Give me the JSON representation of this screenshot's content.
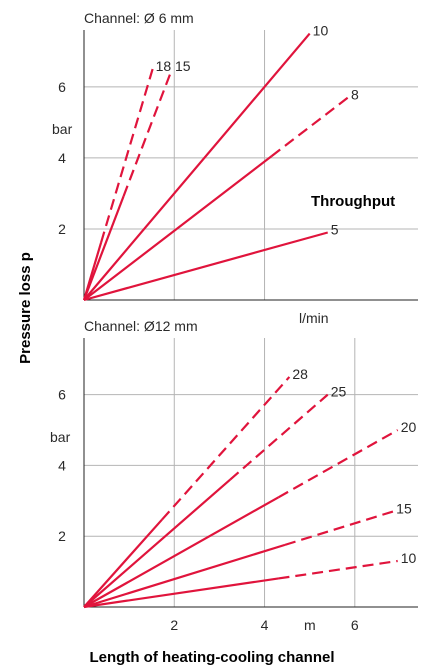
{
  "y_axis_title": "Pressure loss  p",
  "x_axis_title": "Length of heating-cooling channel",
  "colors": {
    "series": "#e0143c",
    "grid": "#b4b4b4",
    "axis": "#222222",
    "text": "#2a2a2a"
  },
  "chart_data": [
    {
      "type": "line",
      "title": "Channel:  Ø 6 mm",
      "xlabel": "l/min",
      "ylabel": "bar",
      "legend_title": "Throughput",
      "xlim": [
        0,
        7.4
      ],
      "ylim": [
        0,
        7.6
      ],
      "x_gridlines": [
        2,
        4
      ],
      "y_ticks": [
        2,
        4,
        6
      ],
      "y_tick_labels": [
        "2",
        "4",
        "6"
      ],
      "grid": true,
      "series": [
        {
          "name": "18",
          "points": [
            [
              0,
              0
            ],
            [
              1.52,
              6.5
            ]
          ],
          "dashed_from": 0.25
        },
        {
          "name": "15",
          "points": [
            [
              0,
              0
            ],
            [
              1.95,
              6.5
            ]
          ],
          "dashed_from": 0.45
        },
        {
          "name": "10",
          "points": [
            [
              0,
              0
            ],
            [
              5.0,
              7.5
            ]
          ],
          "dashed_from": null
        },
        {
          "name": "8",
          "points": [
            [
              0,
              0
            ],
            [
              5.85,
              5.7
            ]
          ],
          "dashed_from": 0.71
        },
        {
          "name": "5",
          "points": [
            [
              0,
              0
            ],
            [
              5.4,
              1.9
            ]
          ],
          "dashed_from": null
        }
      ]
    },
    {
      "type": "line",
      "title": "Channel: Ø12 mm",
      "xlabel": "m",
      "ylabel": "bar",
      "xlim": [
        0,
        7.4
      ],
      "ylim": [
        0,
        7.6
      ],
      "x_ticks": [
        2,
        4,
        6
      ],
      "x_tick_labels": [
        "2",
        "4",
        "6"
      ],
      "y_ticks": [
        2,
        4,
        6
      ],
      "y_tick_labels": [
        "2",
        "4",
        "6"
      ],
      "grid": true,
      "series": [
        {
          "name": "28",
          "points": [
            [
              0,
              0
            ],
            [
              4.55,
              6.5
            ]
          ],
          "dashed_from": 0.38
        },
        {
          "name": "25",
          "points": [
            [
              0,
              0
            ],
            [
              5.4,
              6.0
            ]
          ],
          "dashed_from": 0.6
        },
        {
          "name": "20",
          "points": [
            [
              0,
              0
            ],
            [
              6.95,
              5.0
            ]
          ],
          "dashed_from": 0.62
        },
        {
          "name": "15",
          "points": [
            [
              0,
              0
            ],
            [
              6.85,
              2.7
            ]
          ],
          "dashed_from": 0.65
        },
        {
          "name": "10",
          "points": [
            [
              0,
              0
            ],
            [
              6.95,
              1.3
            ]
          ],
          "dashed_from": 0.62
        }
      ]
    }
  ]
}
